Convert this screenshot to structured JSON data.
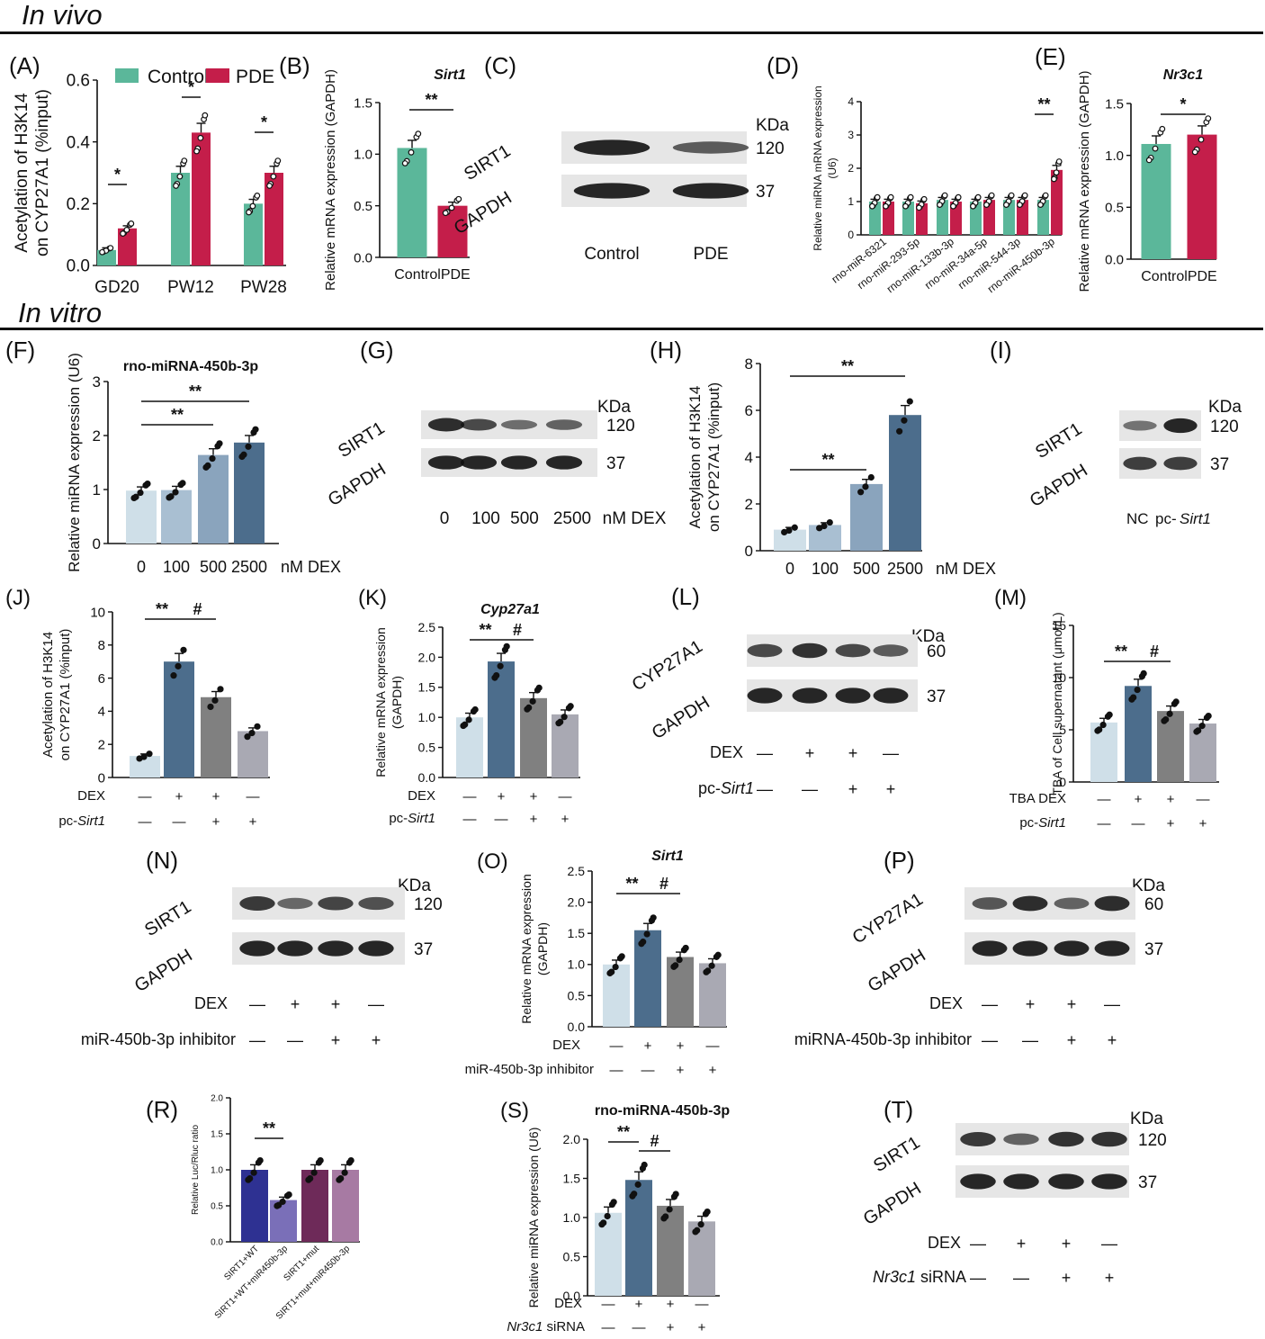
{
  "sections": {
    "in_vivo": "In vivo",
    "in_vitro": "In vitro"
  },
  "colors": {
    "control": "#5bb79a",
    "pde": "#c41e4a",
    "c0": "#cfdfe8",
    "c1": "#a9bfd2",
    "c2": "#8aa4bd",
    "c3": "#4c6d8c",
    "grey": "#808080",
    "lgrey": "#a9a9b3",
    "rnavy": "#2e3192",
    "rlav": "#7a6fb8",
    "rplum": "#6e2a59",
    "rmauve": "#a77aa3"
  },
  "chart_data": [
    {
      "id": "A",
      "panel": "(A)",
      "type": "bar",
      "legend": [
        "Control",
        "PDE"
      ],
      "categories": [
        "GD20",
        "PW12",
        "PW28"
      ],
      "series": [
        {
          "name": "Control",
          "values": [
            0.05,
            0.3,
            0.2
          ]
        },
        {
          "name": "PDE",
          "values": [
            0.12,
            0.43,
            0.3
          ]
        }
      ],
      "ylabel": [
        "Acetylation of H3K14",
        "on CYP27A1 (%input)"
      ],
      "yticks": [
        "0.0",
        "0.2",
        "0.4",
        "0.6"
      ],
      "ylim": [
        0,
        0.6
      ],
      "sig": [
        "*",
        "*",
        "*"
      ]
    },
    {
      "id": "B",
      "panel": "(B)",
      "type": "bar",
      "title": "Sirt1",
      "categories": [
        "Control",
        "PDE"
      ],
      "values": [
        1.06,
        0.5
      ],
      "ylabel": "Relative mRNA expression (GAPDH)",
      "yticks": [
        "0.0",
        "0.5",
        "1.0",
        "1.5"
      ],
      "ylim": [
        0,
        1.5
      ],
      "sig": [
        "**"
      ]
    },
    {
      "id": "D",
      "panel": "(D)",
      "type": "bar",
      "categories": [
        "rno-miR-6321",
        "rno-miR-293-5p",
        "rno-miR-133b-3p",
        "rno-miR-34a-5p",
        "rno-miR-544-3p",
        "rno-miR-450b-3p"
      ],
      "series": [
        {
          "values": [
            1.0,
            1.0,
            1.05,
            1.0,
            1.05,
            1.05
          ]
        },
        {
          "values": [
            1.0,
            0.95,
            1.0,
            1.05,
            1.05,
            1.95
          ]
        }
      ],
      "ylabel": [
        "Relative miRNA mRNA expression",
        "(U6)"
      ],
      "yticks": [
        "0",
        "1",
        "2",
        "3",
        "4"
      ],
      "ylim": [
        0,
        4
      ],
      "sig": [
        "**"
      ]
    },
    {
      "id": "E",
      "panel": "(E)",
      "type": "bar",
      "title": "Nr3c1",
      "categories": [
        "Control",
        "PDE"
      ],
      "values": [
        1.11,
        1.2
      ],
      "ylabel": "Relative mRNA expression (GAPDH)",
      "yticks": [
        "0.0",
        "0.5",
        "1.0",
        "1.5"
      ],
      "ylim": [
        0,
        1.5
      ],
      "sig": [
        "*"
      ]
    },
    {
      "id": "F",
      "panel": "(F)",
      "type": "bar",
      "title": "rno-miRNA-450b-3p",
      "categories": [
        "0",
        "100",
        "500",
        "2500"
      ],
      "unit": "nM DEX",
      "values": [
        0.98,
        0.99,
        1.64,
        1.87
      ],
      "ylabel": "Relative miRNA expression (U6)",
      "yticks": [
        "0",
        "1",
        "2",
        "3"
      ],
      "ylim": [
        0,
        3
      ],
      "sig": [
        "**",
        "**"
      ]
    },
    {
      "id": "H",
      "panel": "(H)",
      "type": "bar",
      "categories": [
        "0",
        "100",
        "500",
        "2500"
      ],
      "unit": "nM DEX",
      "values": [
        0.9,
        1.1,
        2.85,
        5.8
      ],
      "ylabel": [
        "Acetylation of H3K14",
        "on CYP27A1 (%input)"
      ],
      "yticks": [
        "0",
        "2",
        "4",
        "6",
        "8"
      ],
      "ylim": [
        0,
        8
      ],
      "sig": [
        "**",
        "**"
      ]
    },
    {
      "id": "J",
      "panel": "(J)",
      "type": "bar",
      "values": [
        1.3,
        7.0,
        4.85,
        2.8
      ],
      "ylabel": [
        "Acetylation of H3K14",
        "on CYP27A1 (%input)"
      ],
      "yticks": [
        "0",
        "2",
        "4",
        "6",
        "8",
        "10"
      ],
      "ylim": [
        0,
        10
      ],
      "rows": [
        {
          "label": "DEX",
          "marks": [
            "—",
            "+",
            "+",
            "—"
          ]
        },
        {
          "label": "pc-",
          "label_it": "Sirt1",
          "marks": [
            "—",
            "—",
            "+",
            "+"
          ]
        }
      ],
      "sig": [
        "**",
        "#"
      ]
    },
    {
      "id": "K",
      "panel": "(K)",
      "type": "bar",
      "title": "Cyp27a1",
      "values": [
        1.0,
        1.93,
        1.32,
        1.05
      ],
      "ylabel": [
        "Relative mRNA expression",
        "(GAPDH)"
      ],
      "yticks": [
        "0.0",
        "0.5",
        "1.0",
        "1.5",
        "2.0",
        "2.5"
      ],
      "ylim": [
        0,
        2.5
      ],
      "rows": [
        {
          "label": "DEX",
          "marks": [
            "—",
            "+",
            "+",
            "—"
          ]
        },
        {
          "label": "pc-",
          "label_it": "Sirt1",
          "marks": [
            "—",
            "—",
            "+",
            "+"
          ]
        }
      ],
      "sig": [
        "**",
        "#"
      ]
    },
    {
      "id": "M",
      "panel": "(M)",
      "type": "bar",
      "values": [
        5.7,
        9.2,
        6.8,
        5.6
      ],
      "ylabel": "TBA of Cell supernatant (μmol/L)",
      "yticks": [
        "0",
        "5",
        "10",
        "15"
      ],
      "ylim": [
        0,
        15
      ],
      "rows": [
        {
          "label": "TBA DEX",
          "marks": [
            "—",
            "+",
            "+",
            "—"
          ]
        },
        {
          "label": "pc-",
          "label_it": "Sirt1",
          "marks": [
            "—",
            "—",
            "+",
            "+"
          ]
        }
      ],
      "sig": [
        "**",
        "#"
      ]
    },
    {
      "id": "O",
      "panel": "(O)",
      "type": "bar",
      "title": "Sirt1",
      "values": [
        1.0,
        1.55,
        1.12,
        1.02
      ],
      "ylabel": [
        "Relative mRNA expression",
        "(GAPDH)"
      ],
      "yticks": [
        "0.0",
        "0.5",
        "1.0",
        "1.5",
        "2.0",
        "2.5"
      ],
      "ylim": [
        0,
        2.5
      ],
      "rows": [
        {
          "label": "DEX",
          "marks": [
            "—",
            "+",
            "+",
            "—"
          ]
        },
        {
          "label": "miR-450b-3p inhibitor",
          "marks": [
            "—",
            "—",
            "+",
            "+"
          ]
        }
      ],
      "sig": [
        "**",
        "#"
      ]
    },
    {
      "id": "R",
      "panel": "(R)",
      "type": "bar",
      "categories": [
        "SIRT1+WT",
        "SIRT1+WT+miR450b-3p",
        "SIRT1+mut",
        "SIRT1+mut+miR450b-3p"
      ],
      "values": [
        1.0,
        0.58,
        1.0,
        1.0
      ],
      "ylabel": "Relative Luc/Rluc ratio",
      "yticks": [
        "0.0",
        "0.5",
        "1.0",
        "1.5",
        "2.0"
      ],
      "ylim": [
        0,
        2
      ],
      "sig": [
        "**"
      ]
    },
    {
      "id": "S",
      "panel": "(S)",
      "type": "bar",
      "title": "rno-miRNA-450b-3p",
      "values": [
        1.06,
        1.48,
        1.15,
        0.95
      ],
      "ylabel": "Relative miRNA expression (U6)",
      "yticks": [
        "0.0",
        "0.5",
        "1.0",
        "1.5",
        "2.0"
      ],
      "ylim": [
        0,
        2
      ],
      "rows": [
        {
          "label": "DEX",
          "marks": [
            "—",
            "+",
            "+",
            "—"
          ]
        },
        {
          "label_it": "Nr3c1",
          "label": " siRNA",
          "marks": [
            "—",
            "—",
            "+",
            "+"
          ]
        }
      ],
      "sig": [
        "**",
        "#"
      ]
    }
  ],
  "blots": [
    {
      "id": "C",
      "panel": "(C)",
      "kda": "KDa",
      "proteins": [
        "SIRT1",
        "GAPDH"
      ],
      "sizes": [
        "120",
        "37"
      ],
      "lanes": [
        "Control",
        "PDE"
      ]
    },
    {
      "id": "G",
      "panel": "(G)",
      "kda": "KDa",
      "proteins": [
        "SIRT1",
        "GAPDH"
      ],
      "sizes": [
        "120",
        "37"
      ],
      "lanes": [
        "0",
        "100",
        "500",
        "2500",
        "nM DEX"
      ]
    },
    {
      "id": "I",
      "panel": "(I)",
      "kda": "KDa",
      "proteins": [
        "SIRT1",
        "GAPDH"
      ],
      "sizes": [
        "120",
        "37"
      ],
      "lanes": [
        "NC",
        "pc-",
        "Sirt1"
      ]
    },
    {
      "id": "L",
      "panel": "(L)",
      "kda": "KDa",
      "proteins": [
        "CYP27A1",
        "GAPDH"
      ],
      "sizes": [
        "60",
        "37"
      ],
      "rows": [
        {
          "label": "DEX",
          "marks": [
            "—",
            "+",
            "+",
            "—"
          ]
        },
        {
          "label": "pc-",
          "label_it": "Sirt1",
          "marks": [
            "—",
            "—",
            "+",
            "+"
          ]
        }
      ]
    },
    {
      "id": "N",
      "panel": "(N)",
      "kda": "KDa",
      "proteins": [
        "SIRT1",
        "GAPDH"
      ],
      "sizes": [
        "120",
        "37"
      ],
      "rows": [
        {
          "label": "DEX",
          "marks": [
            "—",
            "+",
            "+",
            "—"
          ]
        },
        {
          "label": "miR-450b-3p inhibitor",
          "marks": [
            "—",
            "—",
            "+",
            "+"
          ]
        }
      ]
    },
    {
      "id": "P",
      "panel": "(P)",
      "kda": "KDa",
      "proteins": [
        "CYP27A1",
        "GAPDH"
      ],
      "sizes": [
        "60",
        "37"
      ],
      "rows": [
        {
          "label": "DEX",
          "marks": [
            "—",
            "+",
            "+",
            "—"
          ]
        },
        {
          "label": "miRNA-450b-3p inhibitor",
          "marks": [
            "—",
            "—",
            "+",
            "+"
          ]
        }
      ]
    },
    {
      "id": "T",
      "panel": "(T)",
      "kda": "KDa",
      "proteins": [
        "SIRT1",
        "GAPDH"
      ],
      "sizes": [
        "120",
        "37"
      ],
      "rows": [
        {
          "label": "DEX",
          "marks": [
            "—",
            "+",
            "+",
            "—"
          ]
        },
        {
          "label_it": "Nr3c1",
          "label": " siRNA",
          "marks": [
            "—",
            "—",
            "+",
            "+"
          ]
        }
      ]
    }
  ]
}
